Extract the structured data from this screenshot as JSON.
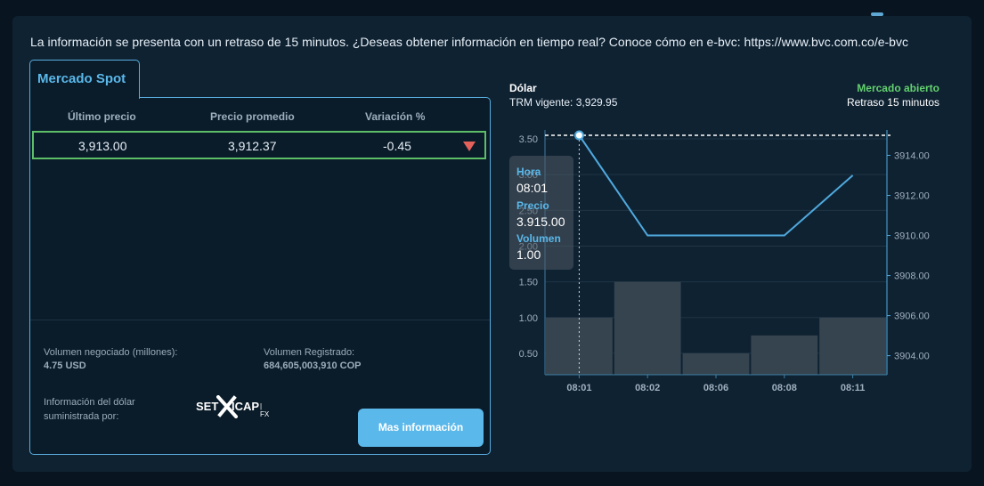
{
  "notice": "La información se presenta con un retraso de 15 minutos. ¿Deseas obtener información en tiempo real? Conoce cómo en e-bvc: https://www.bvc.com.co/e-bvc",
  "spot": {
    "tab_label": "Mercado Spot",
    "columns": [
      "Último precio",
      "Precio promedio",
      "Variación %"
    ],
    "row": {
      "last": "3,913.00",
      "avg": "3,912.37",
      "change": "-0.45",
      "direction": "down-arrow-icon"
    },
    "volume_label": "Volumen negociado (millones):",
    "volume_value": "4.75 USD",
    "registered_label": "Volumen Registrado:",
    "registered_value": "684,605,003,910 COP",
    "provider_label_1": "Información del dólar",
    "provider_label_2": "suministrada por:",
    "provider_logo": {
      "part1": "SET",
      "part2": "ICAP",
      "part3": "| FX"
    },
    "more_button": "Mas información"
  },
  "chart_header": {
    "title": "Dólar",
    "trm": "TRM vigente: 3,929.95",
    "status": "Mercado abierto",
    "status_color": "#63d16f",
    "delay": "Retraso 15 minutos"
  },
  "tooltip": {
    "hora_label": "Hora",
    "hora": "08:01",
    "precio_label": "Precio",
    "precio": "3.915.00",
    "volumen_label": "Volumen",
    "volumen": "1.00"
  },
  "chart_data": {
    "type": "bar",
    "categories": [
      "08:01",
      "08:02",
      "08:06",
      "08:08",
      "08:11"
    ],
    "series": [
      {
        "type": "bar",
        "axis": "left",
        "values": [
          1.0,
          1.5,
          0.5,
          0.75,
          1.0
        ],
        "color": "#36444f"
      },
      {
        "type": "line",
        "axis": "right",
        "values": [
          3915.0,
          3910.0,
          3910.0,
          3910.0,
          3913.0
        ],
        "color": "#4fa9dd"
      }
    ],
    "y_left": {
      "ticks": [
        "0.50",
        "1.00",
        "1.50",
        "2.00",
        "2.50",
        "3.00",
        "3.50"
      ],
      "range": [
        0.2,
        3.55
      ]
    },
    "y_right": {
      "ticks": [
        "3904.00",
        "3906.00",
        "3908.00",
        "3910.00",
        "3912.00",
        "3914.00"
      ],
      "range": [
        3903.05,
        3915.0
      ]
    },
    "reference_line": 3915.0
  }
}
